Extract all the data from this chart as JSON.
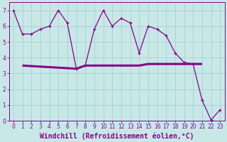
{
  "xlabel": "Windchill (Refroidissement éolien,°C)",
  "xlim": [
    -0.5,
    23.5
  ],
  "ylim": [
    0,
    7.5
  ],
  "xticks": [
    0,
    1,
    2,
    3,
    4,
    5,
    6,
    7,
    8,
    9,
    10,
    11,
    12,
    13,
    14,
    15,
    16,
    17,
    18,
    19,
    20,
    21,
    22,
    23
  ],
  "yticks": [
    0,
    1,
    2,
    3,
    4,
    5,
    6,
    7
  ],
  "bg_color": "#c8e8e8",
  "line_color": "#880088",
  "line1_x": [
    0,
    1,
    2,
    3,
    4,
    5,
    6,
    7,
    8,
    9,
    10,
    11,
    12,
    13,
    14,
    15,
    16,
    17,
    18,
    19,
    20,
    21,
    22,
    23
  ],
  "line1_y": [
    7.0,
    5.5,
    5.5,
    5.8,
    6.0,
    7.0,
    6.2,
    3.3,
    3.5,
    5.8,
    7.0,
    6.0,
    6.5,
    6.2,
    4.3,
    6.0,
    5.8,
    5.4,
    4.3,
    3.7,
    3.6,
    1.3,
    0.05,
    0.7
  ],
  "line2_x": [
    1,
    7,
    8,
    14,
    15,
    19,
    20,
    21
  ],
  "line2_y": [
    3.5,
    3.3,
    3.5,
    3.5,
    3.6,
    3.6,
    3.6,
    3.6
  ],
  "grid_color": "#aad4d4",
  "grid_linewidth": 0.7,
  "font_color": "#880088",
  "tick_fontsize": 5.5,
  "xlabel_fontsize": 7.0,
  "line1_lw": 0.9,
  "line2_lw": 2.2,
  "marker_size": 3.5
}
